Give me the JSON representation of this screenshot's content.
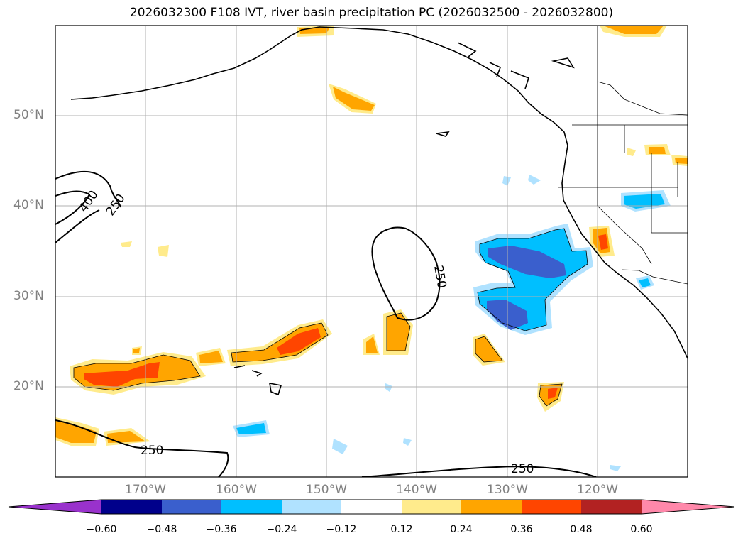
{
  "title": "2026032300 F108 IVT, river basin precipitation PC (2026032500 - 2026032800)",
  "map": {
    "lat_labels": [
      "50°N",
      "40°N",
      "30°N",
      "20°N"
    ],
    "lon_labels": [
      "170°W",
      "160°W",
      "150°W",
      "140°W",
      "130°W",
      "120°W"
    ],
    "contour_labels": [
      "400",
      "250",
      "250",
      "250",
      "250"
    ]
  },
  "colorbar": {
    "ticks": [
      "−0.60",
      "−0.48",
      "−0.36",
      "−0.24",
      "−0.12",
      "0.12",
      "0.24",
      "0.36",
      "0.48",
      "0.60"
    ],
    "colors": [
      "#9932cc",
      "#00008b",
      "#3a5fcd",
      "#00bfff",
      "#b0e2ff",
      "#ffffff",
      "#ffeb8c",
      "#ffa500",
      "#ff4500",
      "#b22222",
      "#ff88aa"
    ]
  }
}
